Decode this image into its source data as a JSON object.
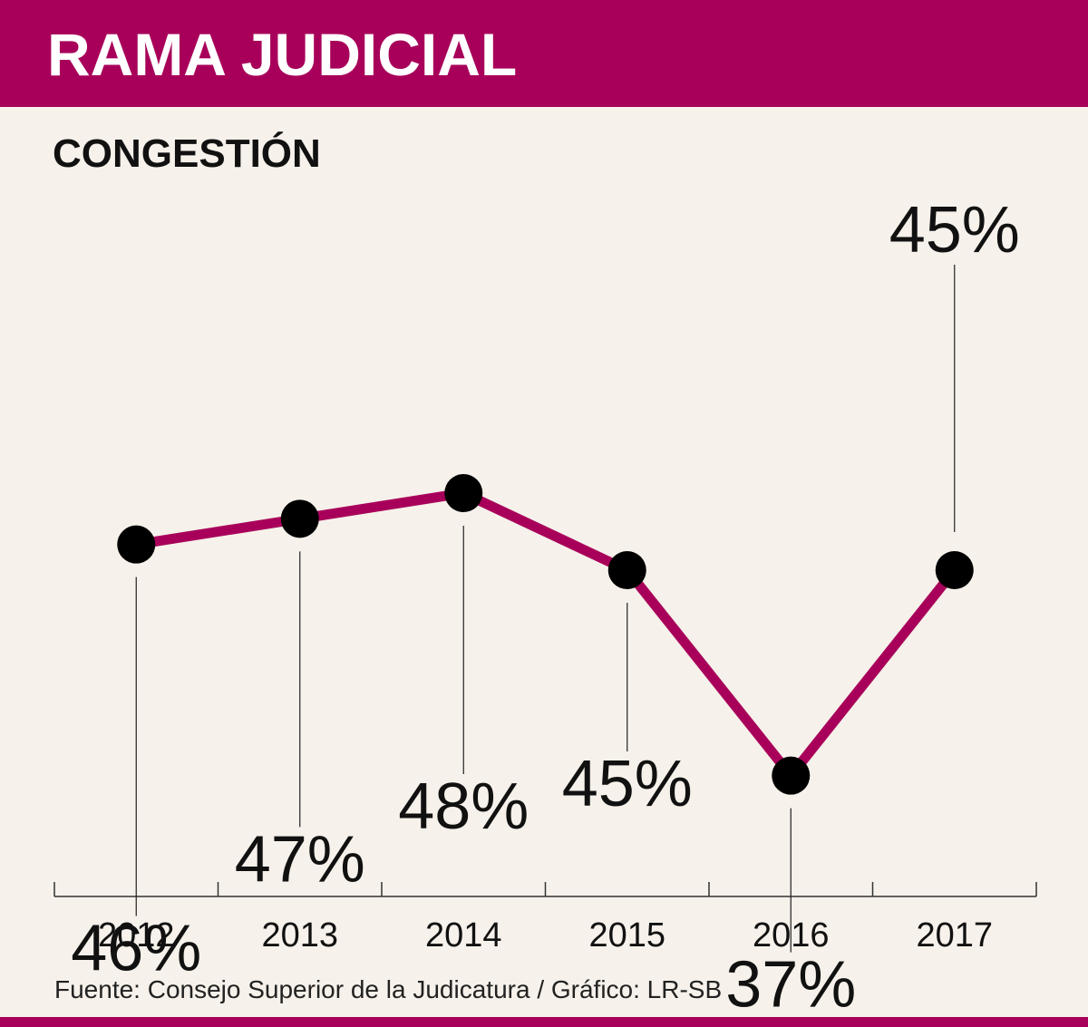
{
  "header": {
    "title": "RAMA JUDICIAL"
  },
  "subtitle": "CONGESTIÓN",
  "source": "Fuente: Consejo Superior de la Judicatura / Gráfico: LR-SB",
  "colors": {
    "brand": "#a8005a",
    "background": "#f6f1ea",
    "marker": "#000000",
    "text": "#111111"
  },
  "chart_data": {
    "type": "line",
    "title": "CONGESTIÓN",
    "xlabel": "",
    "ylabel": "",
    "categories": [
      "2012",
      "2013",
      "2014",
      "2015",
      "2016",
      "2017"
    ],
    "values": [
      46,
      47,
      48,
      45,
      37,
      45
    ],
    "labels": [
      "46%",
      "47%",
      "48%",
      "45%",
      "37%",
      "45%"
    ],
    "label_side": [
      "below",
      "below",
      "below",
      "below",
      "below",
      "above"
    ],
    "ylim": [
      30,
      60
    ],
    "grid": false
  }
}
